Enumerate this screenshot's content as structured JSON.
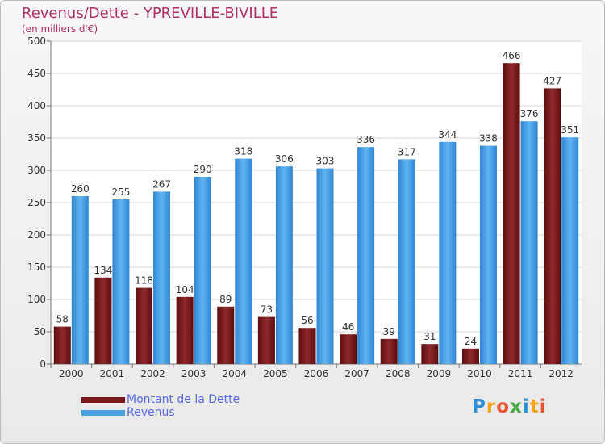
{
  "chart_data": {
    "type": "bar",
    "title": "Revenus/Dette - YPREVILLE-BIVILLE",
    "subtitle": "(en milliers d'€)",
    "categories": [
      "2000",
      "2001",
      "2002",
      "2003",
      "2004",
      "2005",
      "2006",
      "2007",
      "2008",
      "2009",
      "2010",
      "2011",
      "2012"
    ],
    "series": [
      {
        "name": "Montant de la Dette",
        "values": [
          58,
          134,
          118,
          104,
          89,
          73,
          56,
          46,
          39,
          31,
          24,
          466,
          427
        ],
        "color": "#7a1a1e"
      },
      {
        "name": "Revenus",
        "values": [
          260,
          255,
          267,
          290,
          318,
          306,
          303,
          336,
          317,
          344,
          338,
          376,
          351
        ],
        "color": "#4a9fe0"
      }
    ],
    "ylim": [
      0,
      500
    ],
    "yticks": [
      0,
      50,
      100,
      150,
      200,
      250,
      300,
      350,
      400,
      450,
      500
    ],
    "grid": true,
    "legend_position": "bottom-left"
  },
  "brand": {
    "letters": [
      "P",
      "r",
      "o",
      "x",
      "i",
      "t",
      "i"
    ]
  }
}
